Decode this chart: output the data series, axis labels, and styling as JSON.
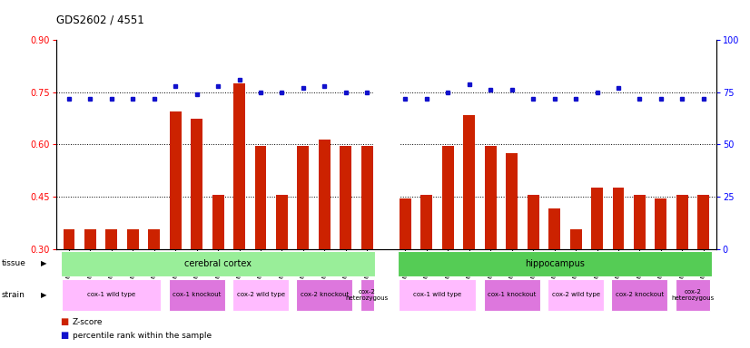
{
  "title": "GDS2602 / 4551",
  "samples": [
    "GSM121421",
    "GSM121422",
    "GSM121423",
    "GSM121424",
    "GSM121425",
    "GSM121426",
    "GSM121427",
    "GSM121428",
    "GSM121429",
    "GSM121430",
    "GSM121431",
    "GSM121432",
    "GSM121433",
    "GSM121434",
    "GSM121435",
    "GSM121436",
    "GSM121437",
    "GSM121438",
    "GSM121439",
    "GSM121440",
    "GSM121441",
    "GSM121442",
    "GSM121443",
    "GSM121444",
    "GSM121445",
    "GSM121446",
    "GSM121447",
    "GSM121448",
    "GSM121449",
    "GSM121450"
  ],
  "z_scores": [
    0.355,
    0.355,
    0.355,
    0.355,
    0.355,
    0.695,
    0.675,
    0.455,
    0.775,
    0.595,
    0.455,
    0.595,
    0.615,
    0.595,
    0.595,
    0.445,
    0.455,
    0.595,
    0.685,
    0.595,
    0.575,
    0.455,
    0.415,
    0.355,
    0.475,
    0.475,
    0.455,
    0.445,
    0.455,
    0.455
  ],
  "percentile_ranks": [
    72,
    72,
    72,
    72,
    72,
    78,
    74,
    78,
    81,
    75,
    75,
    77,
    78,
    75,
    75,
    72,
    72,
    75,
    79,
    76,
    76,
    72,
    72,
    72,
    75,
    77,
    72,
    72,
    72,
    72
  ],
  "bar_color": "#cc2200",
  "dot_color": "#1111cc",
  "ylim_left": [
    0.3,
    0.9
  ],
  "ylim_right": [
    0,
    100
  ],
  "y_ticks_left": [
    0.3,
    0.45,
    0.6,
    0.75,
    0.9
  ],
  "y_ticks_right": [
    0,
    25,
    50,
    75,
    100
  ],
  "tissue_groups": [
    {
      "label": "cerebral cortex",
      "start": 0,
      "end": 14,
      "color": "#99ee99"
    },
    {
      "label": "hippocampus",
      "start": 15,
      "end": 29,
      "color": "#55cc55"
    }
  ],
  "strain_groups": [
    {
      "label": "cox-1 wild type",
      "start": 0,
      "end": 4,
      "color": "#ffbbff"
    },
    {
      "label": "cox-1 knockout",
      "start": 5,
      "end": 7,
      "color": "#dd77dd"
    },
    {
      "label": "cox-2 wild type",
      "start": 8,
      "end": 10,
      "color": "#ffbbff"
    },
    {
      "label": "cox-2 knockout",
      "start": 11,
      "end": 13,
      "color": "#dd77dd"
    },
    {
      "label": "cox-2\nheterozygous",
      "start": 14,
      "end": 14,
      "color": "#dd77dd"
    },
    {
      "label": "cox-1 wild type",
      "start": 15,
      "end": 18,
      "color": "#ffbbff"
    },
    {
      "label": "cox-1 knockout",
      "start": 19,
      "end": 21,
      "color": "#dd77dd"
    },
    {
      "label": "cox-2 wild type",
      "start": 22,
      "end": 24,
      "color": "#ffbbff"
    },
    {
      "label": "cox-2 knockout",
      "start": 25,
      "end": 27,
      "color": "#dd77dd"
    },
    {
      "label": "cox-2\nheterozygous",
      "start": 28,
      "end": 29,
      "color": "#dd77dd"
    }
  ],
  "background_color": "#ffffff",
  "plot_bg_color": "#ffffff"
}
